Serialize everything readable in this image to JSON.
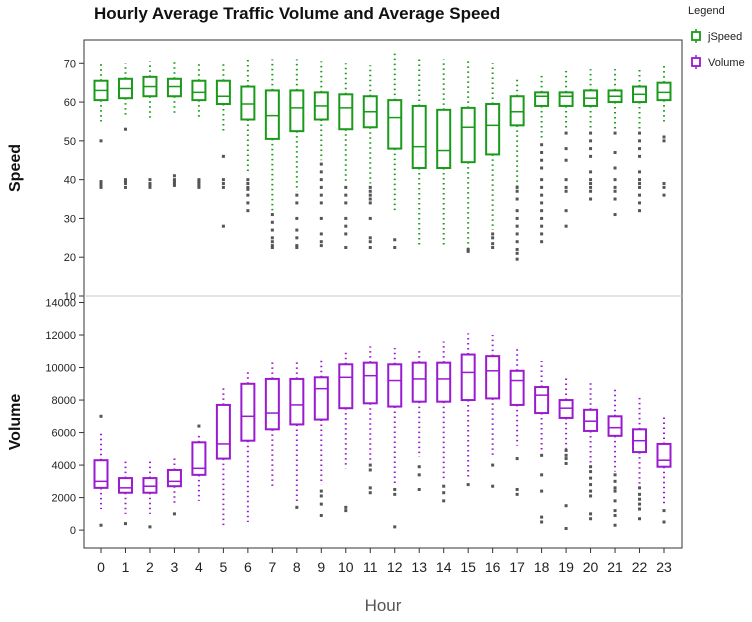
{
  "chart_data": {
    "type": "boxplot",
    "title": "Hourly Average Traffic Volume and Average Speed",
    "xlabel": "Hour",
    "categories": [
      "0",
      "1",
      "2",
      "3",
      "4",
      "5",
      "6",
      "7",
      "8",
      "9",
      "10",
      "11",
      "12",
      "13",
      "14",
      "15",
      "16",
      "17",
      "18",
      "19",
      "20",
      "21",
      "22",
      "23"
    ],
    "legend": {
      "title": "Legend",
      "position": "top-right",
      "entries": [
        {
          "label": "jSpeed",
          "color": "#1a9a1a"
        },
        {
          "label": "Volume",
          "color": "#9a1ad0"
        }
      ]
    },
    "panels": [
      {
        "name": "speed",
        "ylabel": "Speed",
        "color": "#1a9a1a",
        "ylim": [
          10,
          76
        ],
        "yticks": [
          10,
          20,
          30,
          40,
          50,
          60,
          70
        ],
        "series": {
          "name": "jSpeed",
          "boxes": [
            {
              "x": "0",
              "whisker_low": 55,
              "q1": 60.5,
              "median": 63,
              "q3": 65.5,
              "whisker_high": 70,
              "outliers": [
                50,
                39.5,
                39,
                38.5,
                38
              ]
            },
            {
              "x": "1",
              "whisker_low": 56,
              "q1": 61,
              "median": 63.5,
              "q3": 66,
              "whisker_high": 70,
              "outliers": [
                53,
                40,
                39.5,
                39,
                38
              ]
            },
            {
              "x": "2",
              "whisker_low": 56,
              "q1": 61.5,
              "median": 64,
              "q3": 66.5,
              "whisker_high": 70.5,
              "outliers": [
                40,
                39,
                38.5,
                38
              ]
            },
            {
              "x": "3",
              "whisker_low": 57,
              "q1": 61.5,
              "median": 64,
              "q3": 66,
              "whisker_high": 71,
              "outliers": [
                41,
                40,
                39.5,
                39,
                38.5
              ]
            },
            {
              "x": "4",
              "whisker_low": 56,
              "q1": 60.5,
              "median": 62.5,
              "q3": 65.5,
              "whisker_high": 70,
              "outliers": [
                40,
                39.5,
                39,
                38.5,
                38
              ]
            },
            {
              "x": "5",
              "whisker_low": 52,
              "q1": 59.5,
              "median": 61.5,
              "q3": 65.5,
              "whisker_high": 70.5,
              "outliers": [
                46,
                40,
                39,
                38,
                28
              ]
            },
            {
              "x": "6",
              "whisker_low": 42,
              "q1": 55.5,
              "median": 59.5,
              "q3": 64,
              "whisker_high": 71,
              "outliers": [
                40,
                39,
                38,
                37.5,
                36,
                34,
                32
              ]
            },
            {
              "x": "7",
              "whisker_low": 32,
              "q1": 50.5,
              "median": 56.5,
              "q3": 63,
              "whisker_high": 71,
              "outliers": [
                31,
                29,
                27,
                25,
                24,
                23,
                22.5
              ]
            },
            {
              "x": "8",
              "whisker_low": 37,
              "q1": 52.5,
              "median": 58.5,
              "q3": 63,
              "whisker_high": 71,
              "outliers": [
                36,
                34,
                30,
                27,
                25,
                23,
                22.5
              ]
            },
            {
              "x": "9",
              "whisker_low": 45,
              "q1": 55.5,
              "median": 59,
              "q3": 62.5,
              "whisker_high": 70.5,
              "outliers": [
                44,
                42,
                40,
                38,
                36,
                34,
                30,
                26,
                24,
                23
              ]
            },
            {
              "x": "10",
              "whisker_low": 39,
              "q1": 53,
              "median": 58.5,
              "q3": 62,
              "whisker_high": 70,
              "outliers": [
                38,
                36,
                34,
                30,
                28,
                26,
                22.5
              ]
            },
            {
              "x": "11",
              "whisker_low": 39,
              "q1": 53.5,
              "median": 57.5,
              "q3": 61.5,
              "whisker_high": 69.5,
              "outliers": [
                38,
                37,
                36,
                35,
                34,
                30,
                25,
                24,
                22.5
              ]
            },
            {
              "x": "12",
              "whisker_low": 32,
              "q1": 48,
              "median": 56,
              "q3": 60.5,
              "whisker_high": 72.5,
              "outliers": [
                24.5,
                22.5
              ]
            },
            {
              "x": "13",
              "whisker_low": 22.5,
              "q1": 43,
              "median": 48.5,
              "q3": 59,
              "whisker_high": 71
            },
            {
              "x": "14",
              "whisker_low": 22.5,
              "q1": 43,
              "median": 47.5,
              "q3": 58,
              "whisker_high": 71
            },
            {
              "x": "15",
              "whisker_low": 22.5,
              "q1": 44.5,
              "median": 53.5,
              "q3": 58.5,
              "whisker_high": 70.5,
              "outliers": [
                22,
                21.5
              ]
            },
            {
              "x": "16",
              "whisker_low": 27,
              "q1": 46.5,
              "median": 54,
              "q3": 59.5,
              "whisker_high": 70,
              "outliers": [
                26,
                25,
                23.5,
                22.5
              ]
            },
            {
              "x": "17",
              "whisker_low": 38,
              "q1": 54,
              "median": 57.5,
              "q3": 61.5,
              "whisker_high": 66,
              "outliers": [
                38,
                37,
                35,
                32,
                30,
                28,
                26,
                24,
                22,
                21,
                19.5
              ]
            },
            {
              "x": "18",
              "whisker_low": 50,
              "q1": 59,
              "median": 61.5,
              "q3": 62.5,
              "whisker_high": 67,
              "outliers": [
                49,
                47,
                45,
                43,
                40,
                38,
                36,
                34,
                32,
                30,
                28,
                26,
                24
              ]
            },
            {
              "x": "19",
              "whisker_low": 53,
              "q1": 59,
              "median": 61.5,
              "q3": 62.5,
              "whisker_high": 68,
              "outliers": [
                52,
                48,
                45,
                40,
                38,
                37,
                32,
                28
              ]
            },
            {
              "x": "20",
              "whisker_low": 53,
              "q1": 59,
              "median": 61,
              "q3": 63,
              "whisker_high": 68.5,
              "outliers": [
                52,
                50,
                48,
                46,
                42,
                40,
                39,
                38,
                37,
                35
              ]
            },
            {
              "x": "21",
              "whisker_low": 53,
              "q1": 60,
              "median": 61.5,
              "q3": 63,
              "whisker_high": 68.5,
              "outliers": [
                52,
                47,
                43,
                40,
                38,
                37,
                35,
                31
              ]
            },
            {
              "x": "22",
              "whisker_low": 53,
              "q1": 60,
              "median": 62,
              "q3": 64,
              "whisker_high": 69,
              "outliers": [
                52,
                50,
                48,
                46,
                42,
                40,
                39,
                38,
                36,
                34,
                32
              ]
            },
            {
              "x": "23",
              "whisker_low": 55,
              "q1": 60.5,
              "median": 62.5,
              "q3": 65,
              "whisker_high": 69.5,
              "outliers": [
                51,
                50,
                39,
                38,
                36
              ]
            }
          ]
        }
      },
      {
        "name": "volume",
        "ylabel": "Volume",
        "color": "#9a1ad0",
        "ylim": [
          -1100,
          14400
        ],
        "yticks": [
          0,
          2000,
          4000,
          6000,
          8000,
          10000,
          12000,
          14000
        ],
        "series": {
          "name": "Volume",
          "boxes": [
            {
              "x": "0",
              "whisker_low": 1300,
              "q1": 2600,
              "median": 3000,
              "q3": 4300,
              "whisker_high": 6100,
              "outliers": [
                7000,
                300
              ]
            },
            {
              "x": "1",
              "whisker_low": 1000,
              "q1": 2300,
              "median": 2600,
              "q3": 3200,
              "whisker_high": 4400,
              "outliers": [
                400
              ]
            },
            {
              "x": "2",
              "whisker_low": 1000,
              "q1": 2300,
              "median": 2700,
              "q3": 3200,
              "whisker_high": 4400,
              "outliers": [
                200
              ]
            },
            {
              "x": "3",
              "whisker_low": 1500,
              "q1": 2700,
              "median": 3000,
              "q3": 3700,
              "whisker_high": 4500,
              "outliers": [
                1000
              ]
            },
            {
              "x": "4",
              "whisker_low": 1800,
              "q1": 3400,
              "median": 3800,
              "q3": 5400,
              "whisker_high": 6000,
              "outliers": [
                6400
              ]
            },
            {
              "x": "5",
              "whisker_low": 300,
              "q1": 4400,
              "median": 5300,
              "q3": 7700,
              "whisker_high": 8900
            },
            {
              "x": "6",
              "whisker_low": 500,
              "q1": 5500,
              "median": 7000,
              "q3": 9000,
              "whisker_high": 9900
            },
            {
              "x": "7",
              "whisker_low": 2600,
              "q1": 6200,
              "median": 7200,
              "q3": 9300,
              "whisker_high": 10400
            },
            {
              "x": "8",
              "whisker_low": 1700,
              "q1": 6500,
              "median": 7700,
              "q3": 9300,
              "whisker_high": 10400,
              "outliers": [
                1400
              ]
            },
            {
              "x": "9",
              "whisker_low": 2800,
              "q1": 6800,
              "median": 8700,
              "q3": 9400,
              "whisker_high": 10500,
              "outliers": [
                2400,
                2100,
                1600,
                900
              ]
            },
            {
              "x": "10",
              "whisker_low": 3800,
              "q1": 7500,
              "median": 9400,
              "q3": 10200,
              "whisker_high": 11000,
              "outliers": [
                1400,
                1200
              ]
            },
            {
              "x": "11",
              "whisker_low": 4200,
              "q1": 7800,
              "median": 9500,
              "q3": 10300,
              "whisker_high": 11300,
              "outliers": [
                4000,
                3700,
                2600,
                2300
              ]
            },
            {
              "x": "12",
              "whisker_low": 2800,
              "q1": 7600,
              "median": 9200,
              "q3": 10200,
              "whisker_high": 11200,
              "outliers": [
                2500,
                2200,
                200
              ]
            },
            {
              "x": "13",
              "whisker_low": 4500,
              "q1": 7900,
              "median": 9300,
              "q3": 10300,
              "whisker_high": 11200,
              "outliers": [
                3900,
                3400,
                2500
              ]
            },
            {
              "x": "14",
              "whisker_low": 3000,
              "q1": 7900,
              "median": 9300,
              "q3": 10300,
              "whisker_high": 11600,
              "outliers": [
                2700,
                2300,
                1800
              ]
            },
            {
              "x": "15",
              "whisker_low": 3200,
              "q1": 8000,
              "median": 9700,
              "q3": 10800,
              "whisker_high": 12100,
              "outliers": [
                2800
              ]
            },
            {
              "x": "16",
              "whisker_low": 4500,
              "q1": 8100,
              "median": 9800,
              "q3": 10700,
              "whisker_high": 12000,
              "outliers": [
                4000,
                2700
              ]
            },
            {
              "x": "17",
              "whisker_low": 5200,
              "q1": 7700,
              "median": 9200,
              "q3": 9800,
              "whisker_high": 11200,
              "outliers": [
                4400,
                2500,
                2200
              ]
            },
            {
              "x": "18",
              "whisker_low": 4900,
              "q1": 7200,
              "median": 8300,
              "q3": 8800,
              "whisker_high": 10400,
              "outliers": [
                4600,
                3400,
                2400,
                800,
                500
              ]
            },
            {
              "x": "19",
              "whisker_low": 5000,
              "q1": 6900,
              "median": 7500,
              "q3": 8000,
              "whisker_high": 9400,
              "outliers": [
                4900,
                4600,
                4400,
                4100,
                1500,
                100
              ]
            },
            {
              "x": "20",
              "whisker_low": 4100,
              "q1": 6100,
              "median": 6700,
              "q3": 7400,
              "whisker_high": 9100,
              "outliers": [
                3900,
                3600,
                3200,
                2800,
                2400,
                2100,
                1000,
                700
              ]
            },
            {
              "x": "21",
              "whisker_low": 3600,
              "q1": 5800,
              "median": 6300,
              "q3": 7000,
              "whisker_high": 8800,
              "outliers": [
                3400,
                3000,
                2600,
                2400,
                1800,
                1200,
                900,
                300
              ]
            },
            {
              "x": "22",
              "whisker_low": 2800,
              "q1": 4800,
              "median": 5500,
              "q3": 6200,
              "whisker_high": 8300,
              "outliers": [
                2600,
                2200,
                1900,
                1600,
                1300,
                700
              ]
            },
            {
              "x": "23",
              "whisker_low": 1500,
              "q1": 3900,
              "median": 4300,
              "q3": 5300,
              "whisker_high": 7000,
              "outliers": [
                1200,
                500
              ]
            }
          ]
        }
      }
    ]
  }
}
